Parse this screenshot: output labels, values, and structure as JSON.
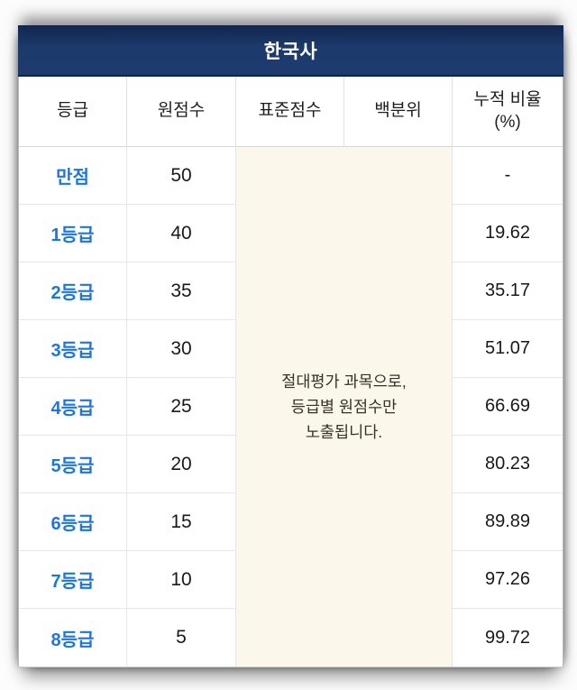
{
  "title": "한국사",
  "columns": {
    "grade": "등급",
    "raw_score": "원점수",
    "standard_score": "표준점수",
    "percentile": "백분위",
    "cumulative_ratio": "누적 비율\n(%)"
  },
  "note": "절대평가 과목으로,\n등급별 원점수만\n노출됩니다.",
  "rows": [
    {
      "grade": "만점",
      "raw_score": "50",
      "cumulative_ratio": "-"
    },
    {
      "grade": "1등급",
      "raw_score": "40",
      "cumulative_ratio": "19.62"
    },
    {
      "grade": "2등급",
      "raw_score": "35",
      "cumulative_ratio": "35.17"
    },
    {
      "grade": "3등급",
      "raw_score": "30",
      "cumulative_ratio": "51.07"
    },
    {
      "grade": "4등급",
      "raw_score": "25",
      "cumulative_ratio": "66.69"
    },
    {
      "grade": "5등급",
      "raw_score": "20",
      "cumulative_ratio": "80.23"
    },
    {
      "grade": "6등급",
      "raw_score": "15",
      "cumulative_ratio": "89.89"
    },
    {
      "grade": "7등급",
      "raw_score": "10",
      "cumulative_ratio": "97.26"
    },
    {
      "grade": "8등급",
      "raw_score": "5",
      "cumulative_ratio": "99.72"
    }
  ],
  "colors": {
    "title_bar_bg": "#1d3a6c",
    "title_text": "#ffffff",
    "grade_text": "#1d76dd",
    "note_bg": "#fbf7ea",
    "note_text": "#37322a",
    "body_text": "#19191c",
    "cell_border": "#e6e6e6"
  }
}
